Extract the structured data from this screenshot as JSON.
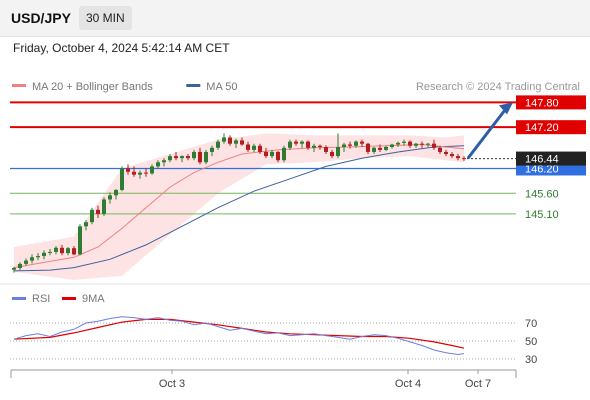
{
  "header": {
    "symbol": "USD/JPY",
    "timeframe": "30 MIN",
    "datetime": "Friday, October 4, 2024 5:42:14 AM CET"
  },
  "colors": {
    "up_candle": "#2e7d32",
    "down_candle": "#b71c1c",
    "bollinger_fill": "#fde3e3",
    "ma20": "#f08080",
    "ma50": "#3f5f9f",
    "resistance": "#e00000",
    "pivot": "#2f6fe0",
    "support": "#73b65c",
    "rsi": "#6b7fe0",
    "rsi_ma": "#e00000",
    "arrow": "#2e5ea8"
  },
  "chart_data": [
    {
      "type": "candlestick",
      "legend": [
        {
          "label": "MA 20 + Bollinger Bands",
          "color": "#f08080"
        },
        {
          "label": "MA 50",
          "color": "#3f5f9f"
        }
      ],
      "credit": "Research © 2024 Trading Central",
      "ylim": [
        143.5,
        148.1
      ],
      "x_ticks": [
        "Oct 3",
        "Oct 4",
        "Oct 7"
      ],
      "levels": [
        {
          "value": 147.8,
          "label": "147.80",
          "kind": "resistance"
        },
        {
          "value": 147.2,
          "label": "147.20",
          "kind": "resistance"
        },
        {
          "value": 146.2,
          "label": "146.20",
          "kind": "pivot"
        },
        {
          "value": 145.6,
          "label": "145.60",
          "kind": "support"
        },
        {
          "value": 145.1,
          "label": "145.10",
          "kind": "support"
        }
      ],
      "last_price": {
        "value": 146.44,
        "label": "146.44"
      },
      "projection": {
        "from_value": 146.45,
        "to_value": 147.8
      },
      "candles": [
        [
          143.75,
          143.82,
          143.68,
          143.79
        ],
        [
          143.79,
          143.93,
          143.74,
          143.89
        ],
        [
          143.89,
          144.02,
          143.85,
          143.97
        ],
        [
          143.97,
          144.12,
          143.9,
          144.05
        ],
        [
          144.05,
          144.15,
          143.98,
          144.08
        ],
        [
          144.08,
          144.22,
          144.0,
          144.16
        ],
        [
          144.16,
          144.25,
          144.1,
          144.18
        ],
        [
          144.18,
          144.32,
          144.12,
          144.28
        ],
        [
          144.28,
          144.35,
          144.1,
          144.15
        ],
        [
          144.15,
          144.3,
          144.1,
          144.27
        ],
        [
          144.27,
          144.32,
          144.1,
          144.12
        ],
        [
          144.12,
          144.85,
          144.1,
          144.8
        ],
        [
          144.8,
          144.95,
          144.7,
          144.9
        ],
        [
          144.9,
          145.25,
          144.85,
          145.2
        ],
        [
          145.2,
          145.3,
          145.0,
          145.1
        ],
        [
          145.1,
          145.5,
          145.05,
          145.45
        ],
        [
          145.45,
          145.62,
          145.35,
          145.55
        ],
        [
          145.55,
          145.7,
          145.45,
          145.68
        ],
        [
          145.68,
          146.25,
          145.65,
          146.2
        ],
        [
          146.2,
          146.3,
          146.05,
          146.12
        ],
        [
          146.12,
          146.25,
          146.0,
          146.05
        ],
        [
          146.05,
          146.15,
          145.95,
          146.1
        ],
        [
          146.1,
          146.2,
          146.0,
          146.08
        ],
        [
          146.08,
          146.3,
          146.05,
          146.25
        ],
        [
          146.25,
          146.4,
          146.2,
          146.35
        ],
        [
          146.35,
          146.45,
          146.25,
          146.4
        ],
        [
          146.4,
          146.55,
          146.35,
          146.5
        ],
        [
          146.5,
          146.6,
          146.4,
          146.45
        ],
        [
          146.45,
          146.52,
          146.35,
          146.5
        ],
        [
          146.5,
          146.55,
          146.4,
          146.45
        ],
        [
          146.45,
          146.65,
          146.4,
          146.6
        ],
        [
          146.6,
          146.7,
          146.3,
          146.35
        ],
        [
          146.35,
          146.65,
          146.3,
          146.6
        ],
        [
          146.6,
          146.75,
          146.5,
          146.7
        ],
        [
          146.7,
          146.9,
          146.65,
          146.85
        ],
        [
          146.85,
          147.05,
          146.8,
          146.95
        ],
        [
          146.95,
          147.0,
          146.75,
          146.8
        ],
        [
          146.8,
          146.92,
          146.7,
          146.88
        ],
        [
          146.88,
          146.95,
          146.75,
          146.78
        ],
        [
          146.78,
          146.85,
          146.6,
          146.65
        ],
        [
          146.65,
          146.8,
          146.6,
          146.75
        ],
        [
          146.75,
          146.8,
          146.55,
          146.6
        ],
        [
          146.6,
          146.7,
          146.45,
          146.5
        ],
        [
          146.5,
          146.65,
          146.45,
          146.6
        ],
        [
          146.6,
          146.62,
          146.35,
          146.4
        ],
        [
          146.4,
          146.75,
          146.35,
          146.7
        ],
        [
          146.7,
          146.9,
          146.65,
          146.85
        ],
        [
          146.85,
          146.9,
          146.75,
          146.8
        ],
        [
          146.8,
          146.88,
          146.7,
          146.85
        ],
        [
          146.85,
          146.88,
          146.65,
          146.7
        ],
        [
          146.7,
          146.8,
          146.6,
          146.75
        ],
        [
          146.75,
          146.78,
          146.65,
          146.72
        ],
        [
          146.72,
          146.76,
          146.55,
          146.6
        ],
        [
          146.6,
          146.65,
          146.45,
          146.5
        ],
        [
          146.5,
          147.05,
          146.45,
          146.72
        ],
        [
          146.72,
          146.82,
          146.6,
          146.78
        ],
        [
          146.78,
          146.85,
          146.68,
          146.75
        ],
        [
          146.75,
          146.88,
          146.7,
          146.85
        ],
        [
          146.85,
          146.9,
          146.72,
          146.8
        ],
        [
          146.8,
          146.82,
          146.55,
          146.6
        ],
        [
          146.6,
          146.72,
          146.55,
          146.7
        ],
        [
          146.7,
          146.78,
          146.6,
          146.65
        ],
        [
          146.65,
          146.75,
          146.62,
          146.72
        ],
        [
          146.72,
          146.8,
          146.68,
          146.78
        ],
        [
          146.78,
          146.85,
          146.72,
          146.82
        ],
        [
          146.82,
          146.9,
          146.75,
          146.85
        ],
        [
          146.85,
          146.88,
          146.7,
          146.75
        ],
        [
          146.75,
          146.82,
          146.7,
          146.8
        ],
        [
          146.8,
          146.85,
          146.7,
          146.78
        ],
        [
          146.78,
          146.82,
          146.72,
          146.8
        ],
        [
          146.8,
          146.9,
          146.65,
          146.7
        ],
        [
          146.7,
          146.75,
          146.55,
          146.6
        ],
        [
          146.6,
          146.65,
          146.5,
          146.55
        ],
        [
          146.55,
          146.6,
          146.45,
          146.5
        ],
        [
          146.5,
          146.55,
          146.4,
          146.45
        ],
        [
          146.45,
          146.5,
          146.38,
          146.44
        ]
      ],
      "ma20": [
        [
          0,
          143.8
        ],
        [
          6,
          143.95
        ],
        [
          10,
          144.05
        ],
        [
          14,
          144.3
        ],
        [
          18,
          144.75
        ],
        [
          22,
          145.25
        ],
        [
          26,
          145.75
        ],
        [
          30,
          146.1
        ],
        [
          34,
          146.35
        ],
        [
          38,
          146.55
        ],
        [
          44,
          146.65
        ],
        [
          50,
          146.7
        ],
        [
          56,
          146.72
        ],
        [
          62,
          146.75
        ],
        [
          68,
          146.78
        ],
        [
          72,
          146.72
        ],
        [
          75,
          146.68
        ]
      ],
      "bollinger_upper": [
        [
          0,
          144.3
        ],
        [
          10,
          144.55
        ],
        [
          18,
          146.2
        ],
        [
          26,
          146.55
        ],
        [
          34,
          146.9
        ],
        [
          42,
          147.05
        ],
        [
          50,
          147.0
        ],
        [
          58,
          147.0
        ],
        [
          66,
          147.0
        ],
        [
          72,
          146.95
        ],
        [
          75,
          147.0
        ]
      ],
      "bollinger_lower": [
        [
          0,
          143.7
        ],
        [
          10,
          143.5
        ],
        [
          18,
          143.6
        ],
        [
          26,
          144.6
        ],
        [
          34,
          145.6
        ],
        [
          42,
          146.3
        ],
        [
          50,
          146.35
        ],
        [
          58,
          146.45
        ],
        [
          66,
          146.5
        ],
        [
          72,
          146.4
        ],
        [
          75,
          146.35
        ]
      ],
      "ma50": [
        [
          0,
          143.72
        ],
        [
          6,
          143.74
        ],
        [
          10,
          143.8
        ],
        [
          16,
          144.0
        ],
        [
          22,
          144.35
        ],
        [
          28,
          144.8
        ],
        [
          34,
          145.25
        ],
        [
          40,
          145.65
        ],
        [
          46,
          145.95
        ],
        [
          52,
          146.25
        ],
        [
          58,
          146.45
        ],
        [
          64,
          146.6
        ],
        [
          70,
          146.72
        ],
        [
          75,
          146.75
        ]
      ]
    },
    {
      "type": "line",
      "legend": [
        {
          "label": "RSI",
          "color": "#6b7fe0"
        },
        {
          "label": "9MA",
          "color": "#e00000"
        }
      ],
      "ylim": [
        20,
        90
      ],
      "y_ticks": [
        70,
        50,
        30
      ],
      "series": [
        {
          "name": "RSI",
          "values": [
            [
              0,
              52
            ],
            [
              2,
              56
            ],
            [
              4,
              58
            ],
            [
              6,
              55
            ],
            [
              8,
              60
            ],
            [
              10,
              63
            ],
            [
              12,
              70
            ],
            [
              14,
              72
            ],
            [
              16,
              75
            ],
            [
              18,
              77
            ],
            [
              20,
              76
            ],
            [
              22,
              74
            ],
            [
              24,
              76
            ],
            [
              26,
              73
            ],
            [
              28,
              72
            ],
            [
              30,
              68
            ],
            [
              32,
              70
            ],
            [
              34,
              66
            ],
            [
              36,
              62
            ],
            [
              38,
              64
            ],
            [
              40,
              61
            ],
            [
              42,
              58
            ],
            [
              44,
              59
            ],
            [
              46,
              56
            ],
            [
              48,
              57
            ],
            [
              50,
              58
            ],
            [
              52,
              56
            ],
            [
              54,
              54
            ],
            [
              56,
              52
            ],
            [
              58,
              55
            ],
            [
              60,
              57
            ],
            [
              62,
              56
            ],
            [
              64,
              53
            ],
            [
              66,
              49
            ],
            [
              68,
              45
            ],
            [
              70,
              40
            ],
            [
              72,
              37
            ],
            [
              74,
              35
            ],
            [
              75,
              36
            ]
          ]
        },
        {
          "name": "9MA",
          "values": [
            [
              0,
              52
            ],
            [
              6,
              54
            ],
            [
              10,
              59
            ],
            [
              14,
              65
            ],
            [
              18,
              71
            ],
            [
              22,
              74
            ],
            [
              26,
              74
            ],
            [
              30,
              71
            ],
            [
              34,
              68
            ],
            [
              38,
              64
            ],
            [
              42,
              60
            ],
            [
              46,
              58
            ],
            [
              50,
              57
            ],
            [
              54,
              56
            ],
            [
              58,
              55
            ],
            [
              62,
              55
            ],
            [
              66,
              53
            ],
            [
              70,
              49
            ],
            [
              73,
              45
            ],
            [
              75,
              42
            ]
          ]
        }
      ]
    }
  ]
}
